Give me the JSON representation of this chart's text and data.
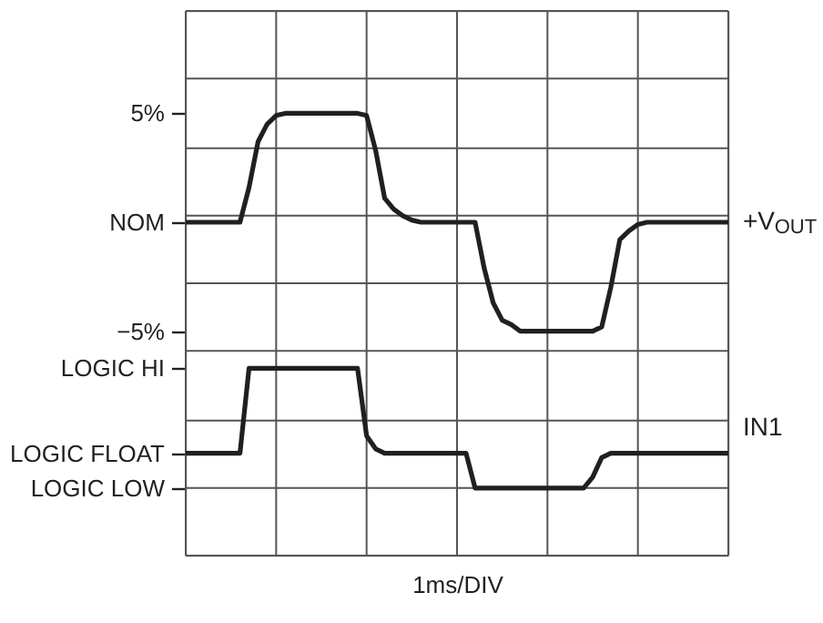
{
  "chart_data": {
    "type": "line",
    "xlabel": "1ms/DIV",
    "categories": [
      null,
      null,
      null,
      null,
      null,
      null,
      null,
      null,
      null,
      null,
      null,
      null,
      null,
      null,
      null,
      null,
      null,
      null,
      null,
      null,
      null,
      null,
      null,
      null,
      null,
      null,
      null,
      null,
      null,
      null,
      null,
      null,
      null,
      null,
      null,
      null,
      null,
      null,
      null,
      null,
      null,
      null,
      null,
      null,
      null,
      null,
      null,
      null,
      null,
      null,
      null,
      null,
      null,
      null,
      null,
      null,
      null,
      null,
      null,
      null,
      null
    ],
    "ylim": [
      -15.3,
      9.7
    ],
    "yticks": [
      {
        "value": -15.3,
        "label": null
      },
      {
        "value": -12.2,
        "label": null
      },
      {
        "value": -9.1,
        "label": null
      },
      {
        "value": -5.9,
        "label": null
      },
      {
        "value": -2.8,
        "label": null
      },
      {
        "value": 0.3,
        "label": null
      },
      {
        "value": 3.4,
        "label": null
      },
      {
        "value": 6.6,
        "label": null
      },
      {
        "value": 9.7,
        "label": null
      },
      {
        "value": 5,
        "label": "5%"
      },
      {
        "value": 0,
        "label": "NOM"
      },
      {
        "value": -5,
        "label": "−5%"
      },
      {
        "value": -6.7,
        "label": "LOGIC HI"
      },
      {
        "value": -10.6,
        "label": "LOGIC FLOAT"
      },
      {
        "value": -12.2,
        "label": "LOGIC LOW"
      }
    ],
    "grid": true,
    "marker": "none",
    "line_style": "solid",
    "series": [
      {
        "name": "+V$_{OUT}$",
        "color": "#231f20",
        "values": [
          0,
          0,
          0,
          0,
          0,
          0,
          0,
          1.6,
          3.7,
          4.5,
          4.9,
          5,
          5,
          5,
          5,
          5,
          5,
          5,
          5,
          5,
          4.9,
          3.3,
          1.1,
          0.6,
          0.3,
          0.1,
          0,
          0,
          0,
          0,
          0,
          0,
          0,
          -2.1,
          -3.7,
          -4.5,
          -4.7,
          -5,
          -5,
          -5,
          -5,
          -5,
          -5,
          -5,
          -5,
          -5,
          -4.8,
          -3.0,
          -0.8,
          -0.4,
          -0.1,
          0,
          0,
          0,
          0,
          0,
          0,
          0,
          0,
          0,
          0
        ]
      },
      {
        "name": "IN1",
        "color": "#231f20",
        "values": [
          -10.6,
          -10.6,
          -10.6,
          -10.6,
          -10.6,
          -10.6,
          -10.6,
          -6.7,
          -6.7,
          -6.7,
          -6.7,
          -6.7,
          -6.7,
          -6.7,
          -6.7,
          -6.7,
          -6.7,
          -6.7,
          -6.7,
          -6.7,
          -9.8,
          -10.4,
          -10.6,
          -10.6,
          -10.6,
          -10.6,
          -10.6,
          -10.6,
          -10.6,
          -10.6,
          -10.6,
          -10.6,
          -12.2,
          -12.2,
          -12.2,
          -12.2,
          -12.2,
          -12.2,
          -12.2,
          -12.2,
          -12.2,
          -12.2,
          -12.2,
          -12.2,
          -12.2,
          -11.7,
          -10.8,
          -10.6,
          -10.6,
          -10.6,
          -10.6,
          -10.6,
          -10.6,
          -10.6,
          -10.6,
          -10.6,
          -10.6,
          -10.6,
          -10.6,
          -10.6,
          -10.6
        ]
      }
    ]
  }
}
